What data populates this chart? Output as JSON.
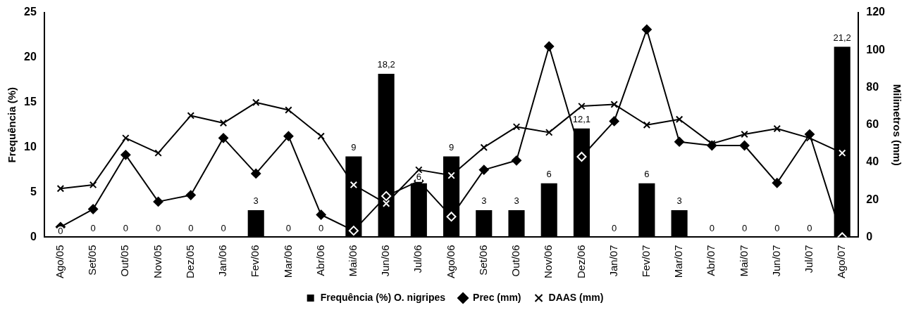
{
  "chart_data": {
    "type": "bar",
    "xlabel": null,
    "ylabel": "Frequência (%)",
    "y2label": "Milimetros (mm)",
    "categories": [
      "Ago/05",
      "Set/05",
      "Out/05",
      "Nov/05",
      "Dez/05",
      "Jan/06",
      "Fev/06",
      "Mar/06",
      "Abr/06",
      "Mai/06",
      "Jun/06",
      "Jul/06",
      "Ago/06",
      "Set/06",
      "Out/06",
      "Nov/06",
      "Dez/06",
      "Jan/07",
      "Fev/07",
      "Mar/07",
      "Abr/07",
      "Mai/07",
      "Jun/07",
      "Jul/07",
      "Ago/07"
    ],
    "series": [
      {
        "name": "Frequência (%) O. nigripes",
        "color": "#000000",
        "values": [
          0,
          0,
          0,
          0,
          0,
          0,
          3,
          0,
          0,
          9,
          18.2,
          6,
          9,
          3,
          3,
          6,
          12.1,
          0,
          6,
          3,
          0,
          0,
          0,
          0,
          21.2
        ],
        "value_labels": [
          "0",
          "0",
          "0",
          "0",
          "0",
          "0",
          "3",
          "0",
          "0",
          "9",
          "18,2",
          "6",
          "9",
          "3",
          "3",
          "6",
          "12,1",
          "0",
          "6",
          "3",
          "0",
          "0",
          "0",
          "0",
          "21,2"
        ]
      },
      {
        "name": "Prec (mm)",
        "type": "line",
        "axis": "y2",
        "marker": "diamond",
        "color": "#000000",
        "values": [
          5.5,
          15,
          44,
          19,
          22.5,
          53,
          34,
          54,
          12,
          3.5,
          22,
          30,
          11,
          36,
          41,
          102,
          43,
          62,
          111,
          51,
          49,
          49,
          29,
          55,
          0
        ]
      },
      {
        "name": "DAAS (mm)",
        "type": "line",
        "axis": "y2",
        "marker": "cross",
        "color": "#000000",
        "values": [
          26,
          28,
          53,
          45,
          65,
          61,
          72,
          68,
          54,
          28,
          18,
          36,
          33,
          48,
          59,
          56,
          70,
          71,
          60,
          63,
          50,
          55,
          58,
          53,
          45
        ]
      }
    ],
    "ylim": [
      0,
      25
    ],
    "yticks": [
      0,
      5,
      10,
      15,
      20,
      25
    ],
    "y2lim": [
      0,
      120
    ],
    "y2ticks": [
      0,
      20,
      40,
      60,
      80,
      100,
      120
    ],
    "grid": false,
    "legend": "bottom"
  }
}
